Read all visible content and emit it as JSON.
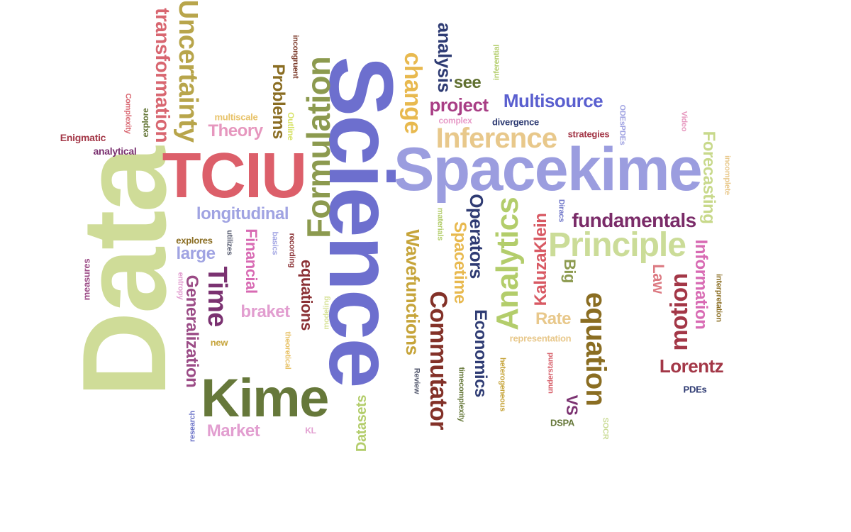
{
  "words": [
    {
      "text": "Data",
      "color": "#cfdc98",
      "rot": -90
    },
    {
      "text": "Science",
      "color": "#6d6fce",
      "rot": 90
    },
    {
      "text": "Spacekime",
      "color": "#9b9ddf",
      "rot": 0
    },
    {
      "text": "TCIU",
      "color": "#dc5f6a",
      "rot": 0
    },
    {
      "text": "Kime",
      "color": "#66783a",
      "rot": 0
    },
    {
      "text": "Formulation",
      "color": "#8c9a4f",
      "rot": -90
    },
    {
      "text": "Uncertainty",
      "color": "#b8a54b",
      "rot": 90
    },
    {
      "text": "transformation",
      "color": "#d86670",
      "rot": 90
    },
    {
      "text": "Principle",
      "color": "#cbdc98",
      "rot": 0
    },
    {
      "text": "Inference",
      "color": "#e8c88b",
      "rot": 0
    },
    {
      "text": "Analytics",
      "color": "#b3cd6b",
      "rot": -90
    },
    {
      "text": "equation",
      "color": "#8a6d22",
      "rot": 90
    },
    {
      "text": "Multisource",
      "color": "#5a5fcf",
      "rot": 0
    },
    {
      "text": "Commutator",
      "color": "#833128",
      "rot": 90
    },
    {
      "text": "Wavefunctions",
      "color": "#c6a43a",
      "rot": 90
    },
    {
      "text": "change",
      "color": "#e8b94f",
      "rot": 90
    },
    {
      "text": "analysis",
      "color": "#2e3b73",
      "rot": 90
    },
    {
      "text": "project",
      "color": "#a83e85",
      "rot": 0
    },
    {
      "text": "see",
      "color": "#607030",
      "rot": 0
    },
    {
      "text": "Operators",
      "color": "#2f3b73",
      "rot": 90
    },
    {
      "text": "Spacetime",
      "color": "#e8b94f",
      "rot": 90
    },
    {
      "text": "fundamentals",
      "color": "#7a2b68",
      "rot": 0
    },
    {
      "text": "Forecasting",
      "color": "#c8d98b",
      "rot": 90
    },
    {
      "text": "Information",
      "color": "#d86ab3",
      "rot": 90
    },
    {
      "text": "motion",
      "color": "#a33747",
      "rot": -90
    },
    {
      "text": "Lorentz",
      "color": "#a33747",
      "rot": 0
    },
    {
      "text": "Law",
      "color": "#dc7a82",
      "rot": 90
    },
    {
      "text": "KaluzaKlein",
      "color": "#d85963",
      "rot": -90
    },
    {
      "text": "Big",
      "color": "#8c9a4f",
      "rot": 90
    },
    {
      "text": "Rate",
      "color": "#e8c88b",
      "rot": 0
    },
    {
      "text": "Economics",
      "color": "#2e3b73",
      "rot": 90
    },
    {
      "text": "Time",
      "color": "#7b3271",
      "rot": 90
    },
    {
      "text": "Generalization",
      "color": "#9b4b86",
      "rot": 90
    },
    {
      "text": "Theory",
      "color": "#e697be",
      "rot": 0
    },
    {
      "text": "Problems",
      "color": "#8a6d22",
      "rot": 90
    },
    {
      "text": "longitudinal",
      "color": "#a0a3e2",
      "rot": 0
    },
    {
      "text": "Financial",
      "color": "#d86ab3",
      "rot": 90
    },
    {
      "text": "braket",
      "color": "#e29ed0",
      "rot": 0
    },
    {
      "text": "equations",
      "color": "#8a3034",
      "rot": 90
    },
    {
      "text": "large",
      "color": "#a0a3e2",
      "rot": 0
    },
    {
      "text": "Market",
      "color": "#e29ed0",
      "rot": 0
    },
    {
      "text": "Datasets",
      "color": "#b3cd6b",
      "rot": -90
    },
    {
      "text": "VS",
      "color": "#7b3271",
      "rot": 90
    },
    {
      "text": "divergence",
      "color": "#2e3b73",
      "rot": 0
    },
    {
      "text": "complex",
      "color": "#e79ac7",
      "rot": 0
    },
    {
      "text": "strategies",
      "color": "#a33747",
      "rot": 0
    },
    {
      "text": "multiscale",
      "color": "#e8c36a",
      "rot": 0
    },
    {
      "text": "Outline",
      "color": "#d8e36a",
      "rot": 90
    },
    {
      "text": "incongruent",
      "color": "#7b3a2a",
      "rot": 90
    },
    {
      "text": "Enigmatic",
      "color": "#a33747",
      "rot": 0
    },
    {
      "text": "analytical",
      "color": "#7b3271",
      "rot": 0
    },
    {
      "text": "Complexity",
      "color": "#d86670",
      "rot": 90
    },
    {
      "text": "explore",
      "color": "#66783a",
      "rot": -90
    },
    {
      "text": "explores",
      "color": "#8a6d22",
      "rot": 0
    },
    {
      "text": "utilizes",
      "color": "#5a5f73",
      "rot": 90
    },
    {
      "text": "basics",
      "color": "#a0a3e2",
      "rot": 90
    },
    {
      "text": "recording",
      "color": "#8a3034",
      "rot": 90
    },
    {
      "text": "modeling",
      "color": "#d8e39b",
      "rot": -90
    },
    {
      "text": "materials",
      "color": "#b3cd6b",
      "rot": 90
    },
    {
      "text": "inferential",
      "color": "#b3cd6b",
      "rot": -90
    },
    {
      "text": "ODEsPDEs",
      "color": "#a0a3e2",
      "rot": 90
    },
    {
      "text": "Diracs",
      "color": "#7077c9",
      "rot": 90
    },
    {
      "text": "Video",
      "color": "#e697be",
      "rot": 90
    },
    {
      "text": "incomplete",
      "color": "#e8c88b",
      "rot": 90
    },
    {
      "text": "interpretation",
      "color": "#8a6d22",
      "rot": 90
    },
    {
      "text": "representation",
      "color": "#e8c88b",
      "rot": 0
    },
    {
      "text": "understand",
      "color": "#d86670",
      "rot": -90
    },
    {
      "text": "heterogeneous",
      "color": "#c6a43a",
      "rot": 90
    },
    {
      "text": "timecomplexity",
      "color": "#66783a",
      "rot": 90
    },
    {
      "text": "Review",
      "color": "#5a5f73",
      "rot": 90
    },
    {
      "text": "theoretical",
      "color": "#e8c36a",
      "rot": 90
    },
    {
      "text": "new",
      "color": "#c6a43a",
      "rot": 0
    },
    {
      "text": "KL",
      "color": "#e29ed0",
      "rot": 0
    },
    {
      "text": "DSPA",
      "color": "#66783a",
      "rot": 0
    },
    {
      "text": "SOCR",
      "color": "#cbdc98",
      "rot": 90
    },
    {
      "text": "PDEs",
      "color": "#2f3b73",
      "rot": 0
    },
    {
      "text": "measures",
      "color": "#9b4b86",
      "rot": -90
    },
    {
      "text": "entropy",
      "color": "#e29ed0",
      "rot": 90
    },
    {
      "text": "research",
      "color": "#7077c9",
      "rot": -90
    }
  ]
}
